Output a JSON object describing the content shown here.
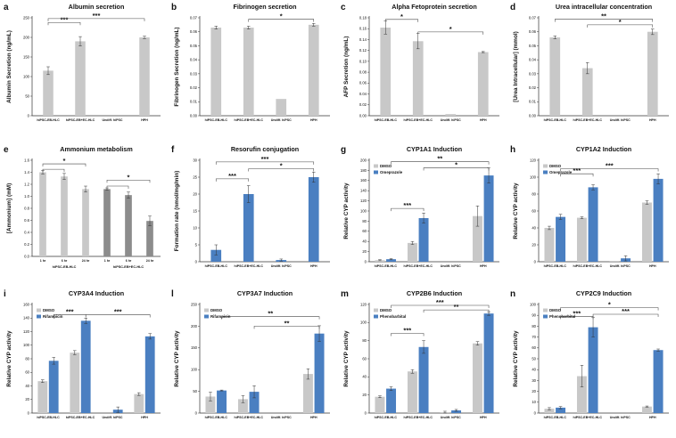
{
  "colors": {
    "gray": "#c8c8c8",
    "dark_gray": "#8c8c8c",
    "blue": "#4a7fc1",
    "axis": "#333333",
    "bracket": "#444444"
  },
  "chart_data": [
    {
      "id": "a",
      "letter": "a",
      "type": "bar",
      "title": "Albumin secretion",
      "ylabel": "Albumin Secretion (ng/mL)",
      "ylim": [
        0,
        250
      ],
      "yticks": [
        0,
        50,
        100,
        150,
        200,
        250
      ],
      "tick_decimals": 0,
      "categories": [
        "hiPSC-EB-HLC",
        "hiPSC-EB+EC-HLC",
        "Undiff. hiPSC",
        "HPH"
      ],
      "series": [
        {
          "name": "",
          "color": "gray",
          "values": [
            115,
            190,
            0,
            200
          ],
          "errors": [
            10,
            12,
            0,
            3
          ]
        }
      ],
      "brackets": [
        {
          "from": 0,
          "to": 1,
          "y": 238,
          "label": "***"
        },
        {
          "from": 0,
          "to": 3,
          "y": 248,
          "label": "***"
        }
      ]
    },
    {
      "id": "b",
      "letter": "b",
      "type": "bar",
      "title": "Fibrinogen secretion",
      "ylabel": "Fibrinogen Secretion (ng/mL)",
      "ylim": [
        0,
        0.07
      ],
      "yticks": [
        0,
        0.01,
        0.02,
        0.03,
        0.04,
        0.05,
        0.06,
        0.07
      ],
      "tick_decimals": 2,
      "categories": [
        "hiPSC-EB-HLC",
        "hiPSC-EB+EC-HLC",
        "Undiff. hiPSC",
        "HPH"
      ],
      "series": [
        {
          "name": "",
          "color": "gray",
          "values": [
            0.063,
            0.063,
            0.012,
            0.065
          ],
          "errors": [
            0.001,
            0.001,
            0,
            0.001
          ]
        }
      ],
      "brackets": [
        {
          "from": 1,
          "to": 3,
          "y": 0.069,
          "label": "*"
        }
      ]
    },
    {
      "id": "c",
      "letter": "c",
      "type": "bar",
      "title": "Alpha Fetoprotein secretion",
      "ylabel": "AFP Secretion (ng/mL)",
      "ylim": [
        0,
        0.18
      ],
      "yticks": [
        0,
        0.02,
        0.04,
        0.06,
        0.08,
        0.1,
        0.12,
        0.14,
        0.16,
        0.18
      ],
      "tick_decimals": 2,
      "categories": [
        "hiPSC-EB-HLC",
        "hiPSC-EB+EC-HLC",
        "Undiff. hiPSC",
        "HPH"
      ],
      "series": [
        {
          "name": "",
          "color": "gray",
          "values": [
            0.162,
            0.137,
            0.003,
            0.117
          ],
          "errors": [
            0.012,
            0.014,
            0,
            0.001
          ]
        }
      ],
      "brackets": [
        {
          "from": 0,
          "to": 1,
          "y": 0.177,
          "label": "*"
        },
        {
          "from": 1,
          "to": 3,
          "y": 0.154,
          "label": "*"
        }
      ]
    },
    {
      "id": "d",
      "letter": "d",
      "type": "bar",
      "title": "Urea intracellular concentration",
      "ylabel": "[Urea Intracellular] (mmol)",
      "ylim": [
        0,
        0.07
      ],
      "yticks": [
        0,
        0.01,
        0.02,
        0.03,
        0.04,
        0.05,
        0.06,
        0.07
      ],
      "tick_decimals": 2,
      "categories": [
        "hiPSC-EB-HLC",
        "hiPSC-EB+EC-HLC",
        "Undiff. hiPSC",
        "HPH"
      ],
      "series": [
        {
          "name": "",
          "color": "gray",
          "values": [
            0.056,
            0.034,
            0,
            0.06
          ],
          "errors": [
            0.001,
            0.004,
            0,
            0.002
          ]
        }
      ],
      "brackets": [
        {
          "from": 0,
          "to": 3,
          "y": 0.069,
          "label": "**"
        },
        {
          "from": 1,
          "to": 3,
          "y": 0.065,
          "label": "*"
        }
      ]
    },
    {
      "id": "e",
      "letter": "e",
      "type": "bar",
      "title": "Ammonium metabolism",
      "ylabel": "[Ammonium] (mM)",
      "ylim": [
        0,
        1.6
      ],
      "yticks": [
        0,
        0.2,
        0.4,
        0.6,
        0.8,
        1,
        1.2,
        1.4,
        1.6
      ],
      "tick_decimals": 1,
      "categories": [
        "1 hr",
        "6 hr",
        "24 hr",
        "1 hr",
        "6 hr",
        "24 hr"
      ],
      "group_labels": [
        "hiPSC-EB-HLC",
        "hiPSC-EB+EC-HLC"
      ],
      "series": [
        {
          "name": "",
          "color": "gray",
          "values": [
            1.4,
            1.33,
            1.12,
            1.12,
            1.02,
            0.59
          ],
          "errors": [
            0.03,
            0.05,
            0.05,
            0.02,
            0.05,
            0.08
          ],
          "bar_colors": [
            "gray",
            "gray",
            "gray",
            "dark_gray",
            "dark_gray",
            "dark_gray"
          ]
        }
      ],
      "brackets": [
        {
          "from": 0,
          "to": 1,
          "y": 1.45,
          "label": ""
        },
        {
          "from": 0,
          "to": 2,
          "y": 1.54,
          "label": "*"
        },
        {
          "from": 3,
          "to": 4,
          "y": 1.17,
          "label": ""
        },
        {
          "from": 3,
          "to": 5,
          "y": 1.27,
          "label": "*"
        }
      ]
    },
    {
      "id": "f",
      "letter": "f",
      "type": "bar",
      "title": "Resorufin conjugation",
      "ylabel": "Formation rate (nmol/mg/min)",
      "ylim": [
        0,
        30
      ],
      "yticks": [
        0,
        5,
        10,
        15,
        20,
        25,
        30
      ],
      "tick_decimals": 0,
      "categories": [
        "hiPSC-EB-HLC",
        "hiPSC-EB+EC-HLC",
        "Undiff. hiPSC",
        "HPH"
      ],
      "series": [
        {
          "name": "",
          "color": "blue",
          "values": [
            3.5,
            20,
            0.5,
            25
          ],
          "errors": [
            1.5,
            2.5,
            0.3,
            1.5
          ]
        }
      ],
      "brackets": [
        {
          "from": 0,
          "to": 1,
          "y": 24.5,
          "label": "***"
        },
        {
          "from": 1,
          "to": 3,
          "y": 27.5,
          "label": "*"
        },
        {
          "from": 0,
          "to": 3,
          "y": 29.5,
          "label": "***"
        }
      ]
    },
    {
      "id": "g",
      "letter": "g",
      "type": "bar",
      "title": "CYP1A1 Induction",
      "ylabel": "Relative CYP activity",
      "ylim": [
        0,
        200
      ],
      "yticks": [
        0,
        20,
        40,
        60,
        80,
        100,
        120,
        140,
        160,
        180,
        200
      ],
      "tick_decimals": 0,
      "categories": [
        "hiPSC-EB-HLC",
        "hiPSC-EB+EC-HLC",
        "Undiff. hiPSC",
        "HPH"
      ],
      "legend": [
        "DMSO",
        "Omeprazole"
      ],
      "series": [
        {
          "name": "DMSO",
          "color": "gray",
          "values": [
            3,
            37,
            0,
            90
          ],
          "errors": [
            1,
            3,
            0,
            20
          ]
        },
        {
          "name": "Omeprazole",
          "color": "blue",
          "values": [
            5,
            86,
            0,
            170
          ],
          "errors": [
            1,
            10,
            0,
            15
          ]
        }
      ],
      "brackets": [
        {
          "from": 0.18,
          "to": 1.18,
          "y": 105,
          "label": "***"
        },
        {
          "from": 1.18,
          "to": 3.18,
          "y": 185,
          "label": "*"
        },
        {
          "from": 0.18,
          "to": 3.18,
          "y": 197,
          "label": "**"
        }
      ]
    },
    {
      "id": "h",
      "letter": "h",
      "type": "bar",
      "title": "CYP1A2 Induction",
      "ylabel": "Relative CYP activity",
      "ylim": [
        0,
        120
      ],
      "yticks": [
        0,
        20,
        40,
        60,
        80,
        100,
        120
      ],
      "tick_decimals": 0,
      "categories": [
        "hiPSC-EB-HLC",
        "hiPSC-EB+EC-HLC",
        "Undiff. hiPSC",
        "HPH"
      ],
      "legend": [
        "DMSO",
        "Omeprazole"
      ],
      "series": [
        {
          "name": "DMSO",
          "color": "gray",
          "values": [
            40,
            52,
            1,
            70
          ],
          "errors": [
            2,
            1,
            0,
            2
          ]
        },
        {
          "name": "Omeprazole",
          "color": "blue",
          "values": [
            53,
            88,
            4,
            98
          ],
          "errors": [
            3,
            3,
            3,
            6
          ]
        }
      ],
      "brackets": [
        {
          "from": 0.18,
          "to": 1.18,
          "y": 104,
          "label": "***"
        },
        {
          "from": 0.18,
          "to": 3.18,
          "y": 110,
          "label": "***"
        }
      ]
    },
    {
      "id": "i",
      "letter": "i",
      "type": "bar",
      "title": "CYP3A4 Induction",
      "ylabel": "Relative CYP activity",
      "ylim": [
        0,
        160
      ],
      "yticks": [
        0,
        20,
        40,
        60,
        80,
        100,
        120,
        140,
        160
      ],
      "tick_decimals": 0,
      "categories": [
        "hiPSC-EB-HLC",
        "hiPSC-EB+EC-HLC",
        "Undiff. hiPSC",
        "HPH"
      ],
      "legend": [
        "DMSO",
        "Rifampicin"
      ],
      "series": [
        {
          "name": "DMSO",
          "color": "gray",
          "values": [
            47,
            89,
            0,
            28
          ],
          "errors": [
            2,
            3,
            0,
            2
          ]
        },
        {
          "name": "Rifampicin",
          "color": "blue",
          "values": [
            77,
            136,
            5,
            113
          ],
          "errors": [
            5,
            4,
            4,
            4
          ]
        }
      ],
      "brackets": [
        {
          "from": 0.18,
          "to": 1.18,
          "y": 145,
          "label": "***"
        },
        {
          "from": 1.18,
          "to": 3.18,
          "y": 145,
          "label": "***"
        }
      ]
    },
    {
      "id": "l",
      "letter": "l",
      "type": "bar",
      "title": "CYP3A7 Induction",
      "ylabel": "Relative CYP activity",
      "ylim": [
        0,
        250
      ],
      "yticks": [
        0,
        50,
        100,
        150,
        200,
        250
      ],
      "tick_decimals": 0,
      "categories": [
        "hiPSC-EB-HLC",
        "hiPSC-EB+EC-HLC",
        "Undiff. hiPSC",
        "HPH"
      ],
      "legend": [
        "DMSO",
        "Rifampicin"
      ],
      "series": [
        {
          "name": "DMSO",
          "color": "gray",
          "values": [
            38,
            32,
            0,
            90
          ],
          "errors": [
            10,
            8,
            0,
            12
          ]
        },
        {
          "name": "Rifampicin",
          "color": "blue",
          "values": [
            52,
            49,
            0,
            183
          ],
          "errors": [
            1,
            14,
            0,
            18
          ]
        }
      ],
      "brackets": [
        {
          "from": 1.18,
          "to": 3.18,
          "y": 200,
          "label": "**"
        },
        {
          "from": 0.18,
          "to": 3.18,
          "y": 222,
          "label": "**"
        }
      ]
    },
    {
      "id": "m",
      "letter": "m",
      "type": "bar",
      "title": "CYP2B6 Induction",
      "ylabel": "Relative CYP activity",
      "ylim": [
        0,
        120
      ],
      "yticks": [
        0,
        20,
        40,
        60,
        80,
        100,
        120
      ],
      "tick_decimals": 0,
      "categories": [
        "hiPSC-EB-HLC",
        "hiPSC-EB+EC-HLC",
        "Undiff. hiPSC",
        "HPH"
      ],
      "legend": [
        "DMSO",
        "Phenobarbital"
      ],
      "series": [
        {
          "name": "DMSO",
          "color": "gray",
          "values": [
            18,
            46,
            1,
            77
          ],
          "errors": [
            1,
            2,
            1,
            2
          ]
        },
        {
          "name": "Phenobarbital",
          "color": "blue",
          "values": [
            27,
            73,
            3,
            110
          ],
          "errors": [
            2,
            7,
            1,
            2
          ]
        }
      ],
      "brackets": [
        {
          "from": 0.18,
          "to": 1.18,
          "y": 88,
          "label": "***"
        },
        {
          "from": 1.18,
          "to": 3.18,
          "y": 114,
          "label": "**"
        },
        {
          "from": 0.18,
          "to": 3.18,
          "y": 119,
          "label": "***"
        }
      ]
    },
    {
      "id": "n",
      "letter": "n",
      "type": "bar",
      "title": "CYP2C9 Induction",
      "ylabel": "Relative CYP activity",
      "ylim": [
        0,
        100
      ],
      "yticks": [
        0,
        10,
        20,
        30,
        40,
        50,
        60,
        70,
        80,
        90,
        100
      ],
      "tick_decimals": 0,
      "categories": [
        "hiPSC-EB-HLC",
        "hiPSC-EB+EC-HLC",
        "Undiff. hiPSC",
        "HPH"
      ],
      "legend": [
        "DMSO",
        "Phenobarbital"
      ],
      "series": [
        {
          "name": "DMSO",
          "color": "gray",
          "values": [
            4,
            34,
            0,
            6
          ],
          "errors": [
            1,
            10,
            0,
            0.5
          ]
        },
        {
          "name": "Phenobarbital",
          "color": "blue",
          "values": [
            5,
            79,
            0,
            58
          ],
          "errors": [
            1,
            9,
            0,
            1
          ]
        }
      ],
      "brackets": [
        {
          "from": 0.18,
          "to": 1.18,
          "y": 89,
          "label": "***"
        },
        {
          "from": 1.18,
          "to": 3.18,
          "y": 91,
          "label": "***"
        },
        {
          "from": 0.18,
          "to": 3.18,
          "y": 97,
          "label": "*"
        }
      ]
    }
  ]
}
